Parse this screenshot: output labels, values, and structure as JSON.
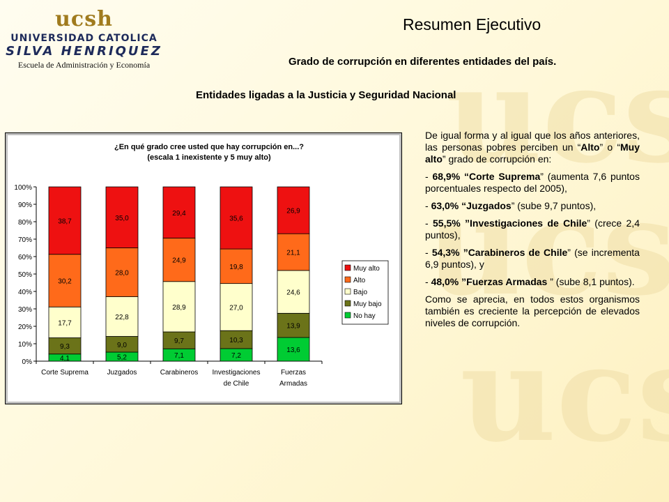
{
  "header": {
    "logo_mark": "ucsh",
    "logo_line1": "UNIVERSIDAD CATOLICA",
    "logo_line2": "SILVA HENRIQUEZ",
    "logo_line3": "Escuela de Administración y Economía",
    "title": "Resumen Ejecutivo",
    "subtitle": "Grado de corrupción en diferentes entidades del país.",
    "section": "Entidades ligadas a la Justicia y Seguridad Nacional"
  },
  "chart_data": {
    "type": "bar",
    "stacked": true,
    "percent_stacked": true,
    "title": "¿En qué grado cree usted que hay corrupción en...?",
    "subtitle": "(escala 1 inexistente y 5 muy alto)",
    "categories": [
      [
        "Corte Suprema"
      ],
      [
        "Juzgados"
      ],
      [
        "Carabineros"
      ],
      [
        "Investigaciones",
        "de Chile"
      ],
      [
        "Fuerzas",
        "Armadas"
      ]
    ],
    "series": [
      {
        "name": "No hay",
        "color": "#00cc33",
        "values": [
          4.1,
          5.2,
          7.1,
          7.2,
          13.6
        ],
        "labels": [
          "4,1",
          "5,2",
          "7,1",
          "7,2",
          "13,6"
        ]
      },
      {
        "name": "Muy bajo",
        "color": "#6b7319",
        "values": [
          9.3,
          9.0,
          9.7,
          10.3,
          13.9
        ],
        "labels": [
          "9,3",
          "9,0",
          "9,7",
          "10,3",
          "13,9"
        ]
      },
      {
        "name": "Bajo",
        "color": "#ffffcc",
        "values": [
          17.7,
          22.8,
          28.9,
          27.0,
          24.6
        ],
        "labels": [
          "17,7",
          "22,8",
          "28,9",
          "27,0",
          "24,6"
        ]
      },
      {
        "name": "Alto",
        "color": "#ff6a1a",
        "values": [
          30.2,
          28.0,
          24.9,
          19.8,
          21.1
        ],
        "labels": [
          "30,2",
          "28,0",
          "24,9",
          "19,8",
          "21,1"
        ]
      },
      {
        "name": "Muy alto",
        "color": "#ee1111",
        "values": [
          38.7,
          35.0,
          29.4,
          35.6,
          26.9
        ],
        "labels": [
          "38,7",
          "35,0",
          "29,4",
          "35,6",
          "26,9"
        ]
      }
    ],
    "ylim": [
      0,
      100
    ],
    "yticks": [
      "0%",
      "10%",
      "20%",
      "30%",
      "40%",
      "50%",
      "60%",
      "70%",
      "80%",
      "90%",
      "100%"
    ],
    "legend_position": "right",
    "legend_order": [
      "Muy alto",
      "Alto",
      "Bajo",
      "Muy bajo",
      "No hay"
    ],
    "background": "#c0c0c0",
    "frame": "#ffffff"
  },
  "body": {
    "intro": [
      "De igual forma y al igual que los años anteriores, las personas pobres perciben un “",
      "Alto",
      "” o “",
      "Muy alto",
      "” grado de corrupción en:"
    ],
    "items": [
      [
        "- ",
        "68,9% “Corte Suprema",
        "” (aumenta 7,6 puntos porcentuales respecto del 2005),"
      ],
      [
        "- ",
        "63,0% “Juzgados",
        "” (sube 9,7 puntos),"
      ],
      [
        "- ",
        "55,5% ”Investigaciones de Chile",
        "” (crece 2,4 puntos),"
      ],
      [
        "- ",
        "54,3% ”Carabineros de Chile",
        "” (se incrementa 6,9 puntos), y"
      ],
      [
        "- ",
        "48,0% ”Fuerzas Armadas",
        " ” (sube 8,1 puntos)."
      ]
    ],
    "conclusion": "Como se aprecia, en todos estos organismos también es creciente la percepción de elevados niveles de corrupción."
  }
}
